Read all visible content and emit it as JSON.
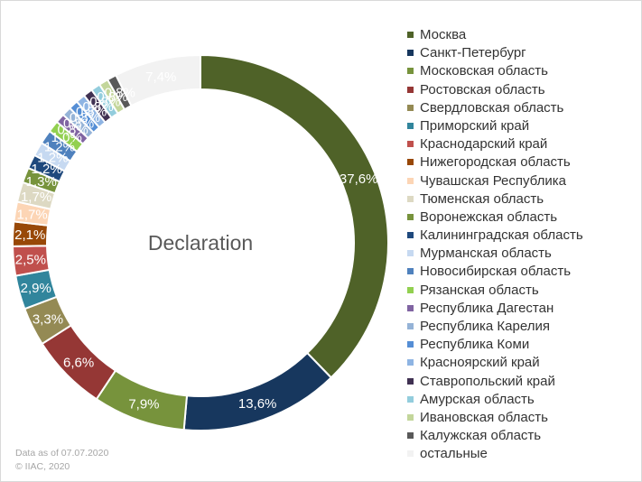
{
  "chart_data": {
    "type": "pie",
    "title": "Declaration",
    "legend_position": "right",
    "slices": [
      {
        "name": "Москва",
        "value": 37.6,
        "label": "37,6%",
        "color": "#4f6228"
      },
      {
        "name": "Санкт-Петербург",
        "value": 13.6,
        "label": "13,6%",
        "color": "#17375e"
      },
      {
        "name": "Московская область",
        "value": 7.9,
        "label": "7,9%",
        "color": "#77933c"
      },
      {
        "name": "Ростовская область",
        "value": 6.6,
        "label": "6,6%",
        "color": "#953735"
      },
      {
        "name": "Свердловская область",
        "value": 3.3,
        "label": "3,3%",
        "color": "#948a54"
      },
      {
        "name": "Приморский край",
        "value": 2.9,
        "label": "2,9%",
        "color": "#31859c"
      },
      {
        "name": "Краснодарский край",
        "value": 2.5,
        "label": "2,5%",
        "color": "#c0504d"
      },
      {
        "name": "Нижегородская область",
        "value": 2.1,
        "label": "2,1%",
        "color": "#984807"
      },
      {
        "name": "Чувашская Республика",
        "value": 1.7,
        "label": "1,7%",
        "color": "#fcd5b5"
      },
      {
        "name": "Тюменская область",
        "value": 1.7,
        "label": "1,7%",
        "color": "#ddd9c3"
      },
      {
        "name": "Воронежская область",
        "value": 1.3,
        "label": "1,3%",
        "color": "#77933c"
      },
      {
        "name": "Калининградская область",
        "value": 1.2,
        "label": "1,2%",
        "color": "#1f497d"
      },
      {
        "name": "Мурманская область",
        "value": 1.2,
        "label": "1,2%",
        "color": "#c6d9f1"
      },
      {
        "name": "Новосибирская область",
        "value": 1.2,
        "label": "1,2%",
        "color": "#4f81bd"
      },
      {
        "name": "Рязанская область",
        "value": 1.0,
        "label": "1,0%",
        "color": "#92d050"
      },
      {
        "name": "Республика Дагестан",
        "value": 0.8,
        "label": "0,8%",
        "color": "#8064a2"
      },
      {
        "name": "Республика Карелия",
        "value": 0.8,
        "label": "0,8%",
        "color": "#95b3d7"
      },
      {
        "name": "Республика Коми",
        "value": 0.8,
        "label": "0,8%",
        "color": "#558ed5"
      },
      {
        "name": "Красноярский край",
        "value": 0.8,
        "label": "0,8%",
        "color": "#8eb4e3"
      },
      {
        "name": "Ставропольский край",
        "value": 0.8,
        "label": "0,8%",
        "color": "#403152"
      },
      {
        "name": "Амурская область",
        "value": 0.8,
        "label": "0,8%",
        "color": "#93cddd"
      },
      {
        "name": "Ивановская область",
        "value": 0.8,
        "label": "0,8%",
        "color": "#c3d69b"
      },
      {
        "name": "Калужская область",
        "value": 0.8,
        "label": "0,8%",
        "color": "#595959"
      },
      {
        "name": "остальные",
        "value": 7.4,
        "label": "7,4%",
        "color": "#f2f2f2"
      }
    ]
  },
  "footer": {
    "line1": "Data as of 07.07.2020",
    "line2": "© IIAC, 2020"
  }
}
